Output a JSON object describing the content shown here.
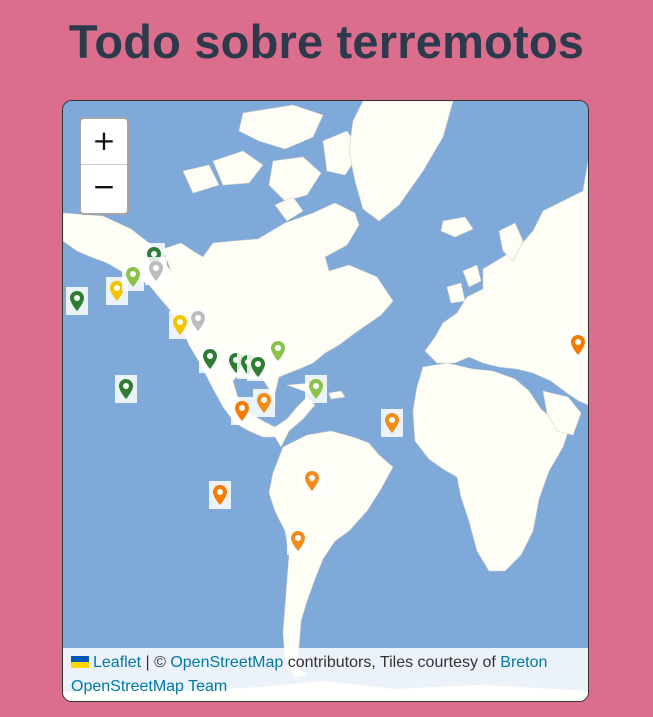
{
  "page": {
    "title": "Todo sobre terremotos",
    "background": "#db6e8d",
    "title_color": "#2d3a4b"
  },
  "map": {
    "ocean_color": "#7fa9d8",
    "land_color": "#fefef6",
    "zoom_in_label": "+",
    "zoom_out_label": "−",
    "attribution": {
      "leaflet_label": "Leaflet",
      "separator": " | © ",
      "osm_label": "OpenStreetMap",
      "contributors_text": " contributors, Tiles courtesy of ",
      "team_label": "Breton OpenStreetMap Team"
    },
    "marker_colors": {
      "dark-green": "#2e7d32",
      "green": "#1b6b3a",
      "light-green": "#8bc34a",
      "yellow": "#f5c400",
      "orange": "#f28c1b",
      "dark-orange": "#f57c00",
      "gray": "#bdbdbd"
    },
    "markers": [
      {
        "name": "marker-aleutians-west",
        "color": "dark-green"
      },
      {
        "name": "marker-alaska-1",
        "color": "yellow"
      },
      {
        "name": "marker-alaska-2",
        "color": "light-green"
      },
      {
        "name": "marker-alaska-3",
        "color": "dark-green"
      },
      {
        "name": "marker-alaska-4",
        "color": "gray"
      },
      {
        "name": "marker-california-1",
        "color": "yellow"
      },
      {
        "name": "marker-california-2",
        "color": "gray"
      },
      {
        "name": "marker-mexico-1",
        "color": "dark-green"
      },
      {
        "name": "marker-mexico-2",
        "color": "dark-green"
      },
      {
        "name": "marker-mexico-3",
        "color": "dark-green"
      },
      {
        "name": "marker-mexico-4",
        "color": "dark-green"
      },
      {
        "name": "marker-usa-east",
        "color": "light-green"
      },
      {
        "name": "marker-hawaii",
        "color": "dark-green"
      },
      {
        "name": "marker-central-america-1",
        "color": "dark-orange"
      },
      {
        "name": "marker-central-america-2",
        "color": "orange"
      },
      {
        "name": "marker-caribbean",
        "color": "light-green"
      },
      {
        "name": "marker-mid-atlantic",
        "color": "orange"
      },
      {
        "name": "marker-pacific-south",
        "color": "dark-orange"
      },
      {
        "name": "marker-chile-north",
        "color": "orange"
      },
      {
        "name": "marker-chile-south",
        "color": "orange"
      },
      {
        "name": "marker-iran",
        "color": "dark-orange"
      }
    ]
  }
}
